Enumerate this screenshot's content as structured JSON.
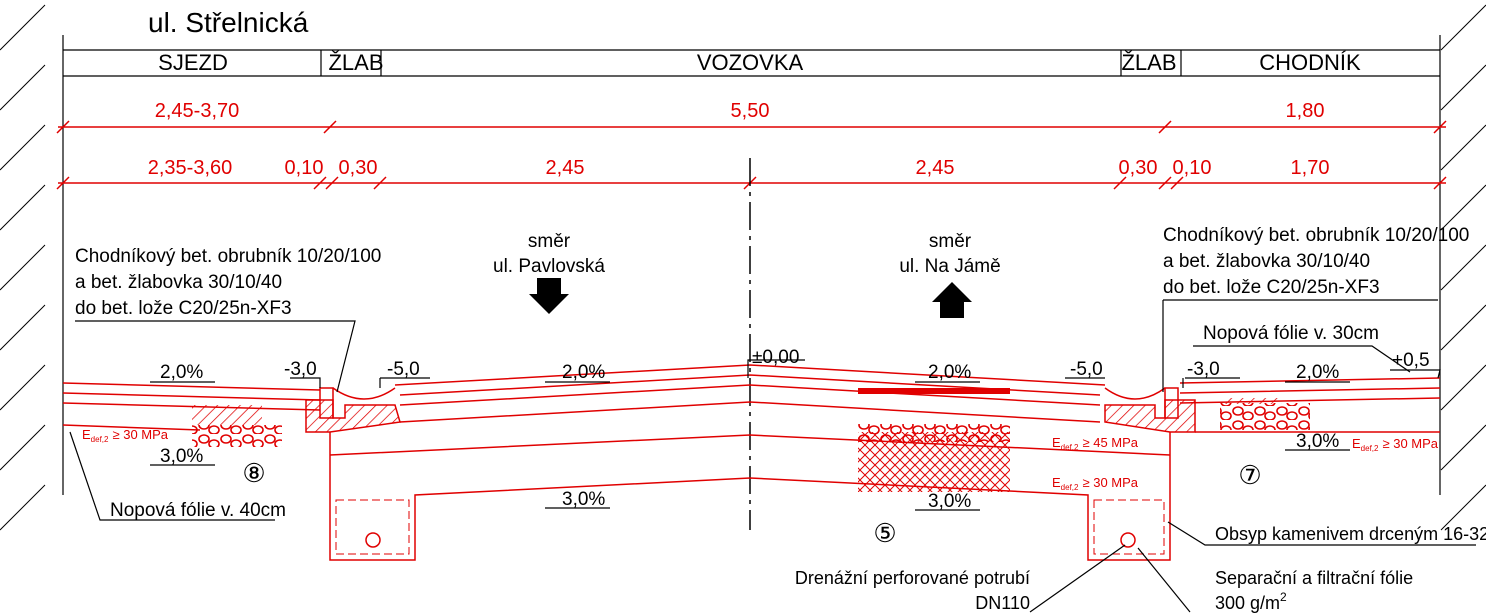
{
  "title": "ul. Střelnická",
  "header": {
    "cells": [
      "SJEZD",
      "ŽLAB",
      "VOZOVKA",
      "ŽLAB",
      "CHODNÍK"
    ]
  },
  "dimensions": {
    "overall": [
      "2,45-3,70",
      "5,50",
      "1,80"
    ],
    "detail": [
      "2,35-3,60",
      "0,10",
      "0,30",
      "2,45",
      "2,45",
      "0,30",
      "0,10",
      "1,70"
    ]
  },
  "notes": {
    "left": [
      "Chodníkový bet. obrubník 10/20/100",
      "a bet. žlabovka 30/10/40",
      "do bet. lože C20/25n-XF3"
    ],
    "right": [
      "Chodníkový bet. obrubník 10/20/100",
      "a bet. žlabovka 30/10/40",
      "do bet. lože C20/25n-XF3"
    ]
  },
  "directions": [
    {
      "label": "směr",
      "street": "ul. Pavlovská"
    },
    {
      "label": "směr",
      "street": "ul. Na Jámě"
    }
  ],
  "levels": [
    "-3,0",
    "-5,0",
    "±0,00",
    "-5,0",
    "-3,0",
    "+0,5"
  ],
  "slopes": [
    "2,0%",
    "2,0%",
    "2,0%",
    "2,0%",
    "3,0%",
    "3,0%",
    "3,0%",
    "3,0%"
  ],
  "membranes": [
    "Nopová fólie v. 30cm",
    "Nopová fólie v. 40cm"
  ],
  "moduli": [
    {
      "symbol": "E",
      "sub": "def,2",
      "value": "≥ 30 MPa"
    },
    {
      "symbol": "E",
      "sub": "def,2",
      "value": "≥ 45 MPa"
    },
    {
      "symbol": "E",
      "sub": "def,2",
      "value": "≥ 30 MPa"
    },
    {
      "symbol": "E",
      "sub": "def,2",
      "value": "≥ 30 MPa"
    }
  ],
  "items": [
    "⑧",
    "⑤",
    "⑦"
  ],
  "callouts": {
    "drain": [
      "Drenážní perforované potrubí",
      "DN110"
    ],
    "backfill": "Obsyp kamenivem drceným 16-32",
    "geotextile": {
      "text": "Separační a filtrační fólie",
      "unit": "300 g/m",
      "sup": "2"
    }
  }
}
